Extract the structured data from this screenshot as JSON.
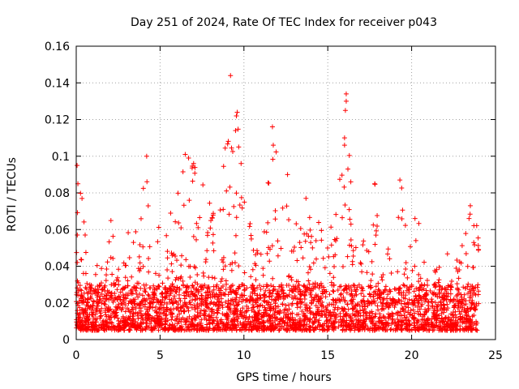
{
  "chart_data": {
    "type": "scatter",
    "title": "Day 251 of 2024, Rate Of TEC Index for receiver p043",
    "xlabel": "GPS time / hours",
    "ylabel": "ROTI / TECUs",
    "xlim": [
      0,
      25
    ],
    "ylim": [
      0,
      0.16
    ],
    "x_ticks": [
      0,
      5,
      10,
      15,
      20,
      25
    ],
    "y_ticks": [
      0,
      0.02,
      0.04,
      0.06,
      0.08,
      0.1,
      0.12,
      0.14,
      0.16
    ],
    "x_tick_labels": [
      "0",
      "5",
      "10",
      "15",
      "20",
      "25"
    ],
    "y_tick_labels": [
      "0",
      "0.02",
      "0.04",
      "0.06",
      "0.08",
      "0.1",
      "0.12",
      "0.14",
      "0.16"
    ],
    "grid": true,
    "marker": "+",
    "marker_color": "#ff0000",
    "data_range_hours": [
      0,
      24
    ],
    "baseline_roti_band": [
      0.005,
      0.03
    ],
    "series": [
      {
        "name": "ROTI",
        "envelope_peaks": [
          {
            "x": 0.1,
            "y": 0.095
          },
          {
            "x": 0.6,
            "y": 0.04
          },
          {
            "x": 1.3,
            "y": 0.043
          },
          {
            "x": 2.1,
            "y": 0.07
          },
          {
            "x": 2.7,
            "y": 0.05
          },
          {
            "x": 3.3,
            "y": 0.072
          },
          {
            "x": 4.2,
            "y": 0.1
          },
          {
            "x": 4.8,
            "y": 0.065
          },
          {
            "x": 5.5,
            "y": 0.075
          },
          {
            "x": 6.0,
            "y": 0.082
          },
          {
            "x": 6.5,
            "y": 0.101
          },
          {
            "x": 7.0,
            "y": 0.098
          },
          {
            "x": 7.5,
            "y": 0.09
          },
          {
            "x": 7.9,
            "y": 0.088
          },
          {
            "x": 8.7,
            "y": 0.075
          },
          {
            "x": 9.2,
            "y": 0.144
          },
          {
            "x": 9.6,
            "y": 0.124
          },
          {
            "x": 10.2,
            "y": 0.072
          },
          {
            "x": 11.0,
            "y": 0.07
          },
          {
            "x": 11.7,
            "y": 0.116
          },
          {
            "x": 12.5,
            "y": 0.09
          },
          {
            "x": 13.3,
            "y": 0.07
          },
          {
            "x": 13.8,
            "y": 0.077
          },
          {
            "x": 14.6,
            "y": 0.068
          },
          {
            "x": 15.2,
            "y": 0.065
          },
          {
            "x": 16.0,
            "y": 0.134
          },
          {
            "x": 16.6,
            "y": 0.06
          },
          {
            "x": 17.3,
            "y": 0.058
          },
          {
            "x": 17.8,
            "y": 0.085
          },
          {
            "x": 18.6,
            "y": 0.065
          },
          {
            "x": 19.3,
            "y": 0.087
          },
          {
            "x": 19.9,
            "y": 0.064
          },
          {
            "x": 20.4,
            "y": 0.066
          },
          {
            "x": 21.3,
            "y": 0.055
          },
          {
            "x": 22.2,
            "y": 0.05
          },
          {
            "x": 23.0,
            "y": 0.055
          },
          {
            "x": 23.5,
            "y": 0.073
          },
          {
            "x": 24.0,
            "y": 0.07
          }
        ],
        "outliers": [
          {
            "x": 9.2,
            "y": 0.144
          },
          {
            "x": 9.6,
            "y": 0.124
          },
          {
            "x": 9.55,
            "y": 0.122
          },
          {
            "x": 9.5,
            "y": 0.114
          },
          {
            "x": 11.7,
            "y": 0.116
          },
          {
            "x": 11.75,
            "y": 0.106
          },
          {
            "x": 16.1,
            "y": 0.134
          },
          {
            "x": 16.1,
            "y": 0.13
          },
          {
            "x": 16.05,
            "y": 0.125
          },
          {
            "x": 16.0,
            "y": 0.11
          },
          {
            "x": 16.0,
            "y": 0.106
          },
          {
            "x": 16.2,
            "y": 0.093
          },
          {
            "x": 4.2,
            "y": 0.1
          },
          {
            "x": 6.5,
            "y": 0.101
          },
          {
            "x": 6.7,
            "y": 0.099
          },
          {
            "x": 7.0,
            "y": 0.096
          },
          {
            "x": 0.05,
            "y": 0.095
          },
          {
            "x": 0.1,
            "y": 0.085
          },
          {
            "x": 19.3,
            "y": 0.087
          },
          {
            "x": 17.8,
            "y": 0.085
          },
          {
            "x": 12.6,
            "y": 0.09
          },
          {
            "x": 13.7,
            "y": 0.077
          },
          {
            "x": 23.5,
            "y": 0.073
          },
          {
            "x": 20.2,
            "y": 0.066
          }
        ]
      }
    ]
  }
}
